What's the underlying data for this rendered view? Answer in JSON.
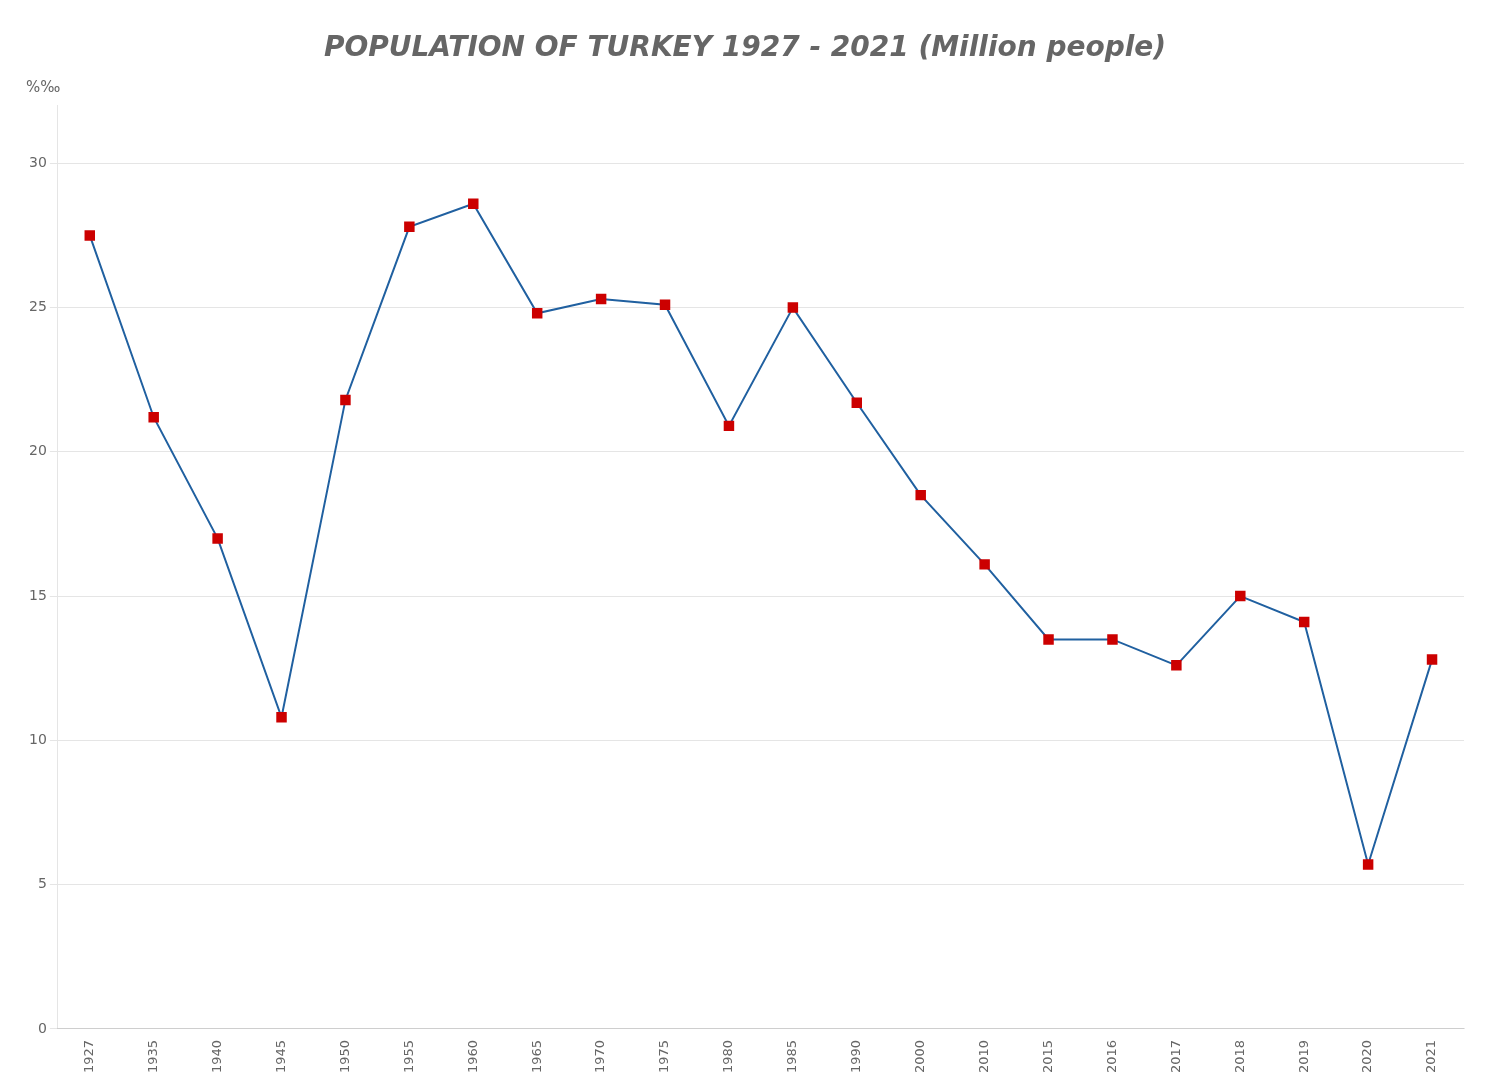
{
  "chart_data": {
    "type": "line",
    "title": "POPULATION OF TURKEY 1927 - 2021 (Million people)",
    "ylabel": "%‰",
    "categories": [
      "1927",
      "1935",
      "1940",
      "1945",
      "1950",
      "1955",
      "1960",
      "1965",
      "1970",
      "1975",
      "1980",
      "1985",
      "1990",
      "2000",
      "2010",
      "2015",
      "2016",
      "2017",
      "2018",
      "2019",
      "2020",
      "2021"
    ],
    "values": [
      27.5,
      21.2,
      17.0,
      10.8,
      21.8,
      27.8,
      28.6,
      24.8,
      25.3,
      25.1,
      20.9,
      25.0,
      21.7,
      18.5,
      16.1,
      13.5,
      13.5,
      12.6,
      15.0,
      14.1,
      5.7,
      12.8
    ],
    "color": "#2060a0",
    "colors": [
      "#cc0000",
      "#cc0000",
      "#cc0000",
      "#cc0000",
      "#cc0000",
      "#cc0000",
      "#cc0000",
      "#cc0000",
      "#cc0000",
      "#cc0000",
      "#cc0000",
      "#cc0000",
      "#cc0000",
      "#cc0000",
      "#cc0000",
      "#cc0000",
      "#cc0000",
      "#cc0000",
      "#cc0000",
      "#cc0000",
      "#cc0000",
      "#cc0000"
    ],
    "marker": "square",
    "ylim": [
      0,
      32
    ],
    "yticks": [
      0,
      5,
      10,
      15,
      20,
      25,
      30
    ],
    "grid": "y"
  }
}
